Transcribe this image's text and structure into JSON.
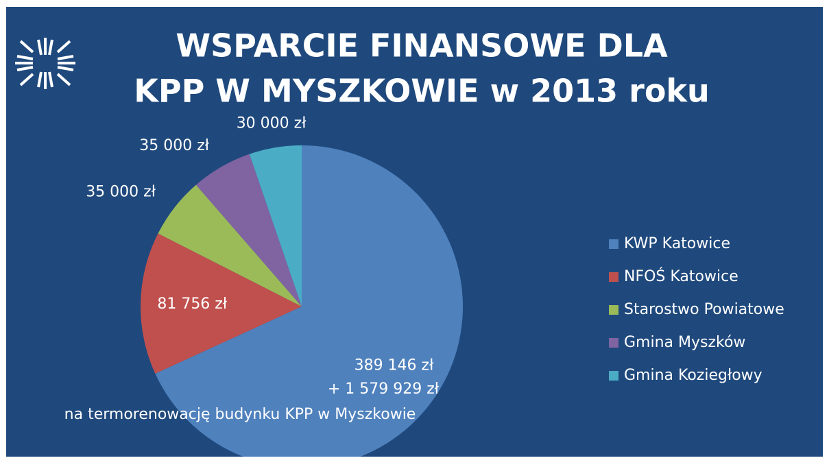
{
  "chart_data": {
    "type": "pie",
    "title": [
      "WSPARCIE FINANSOWE DLA",
      "KPP W MYSZKOWIE w 2013 roku"
    ],
    "categories": [
      "KWP Katowice",
      "NFOŚ Katowice",
      "Starostwo Powiatowe",
      "Gmina Myszków",
      "Gmina Koziegłowy"
    ],
    "values": [
      389146,
      81756,
      35000,
      35000,
      30000
    ],
    "value_labels": [
      "389 146 zł",
      "81 756 zł",
      "35 000 zł",
      "35 000 zł",
      "30 000 zł"
    ],
    "colors": [
      "#4f81bd",
      "#c0504d",
      "#9bbb59",
      "#8064a2",
      "#4bacc6"
    ],
    "annotations": [
      "+ 1 579 929 zł",
      "na termorenowację budynku KPP w Myszkowie"
    ],
    "legend": "right"
  }
}
